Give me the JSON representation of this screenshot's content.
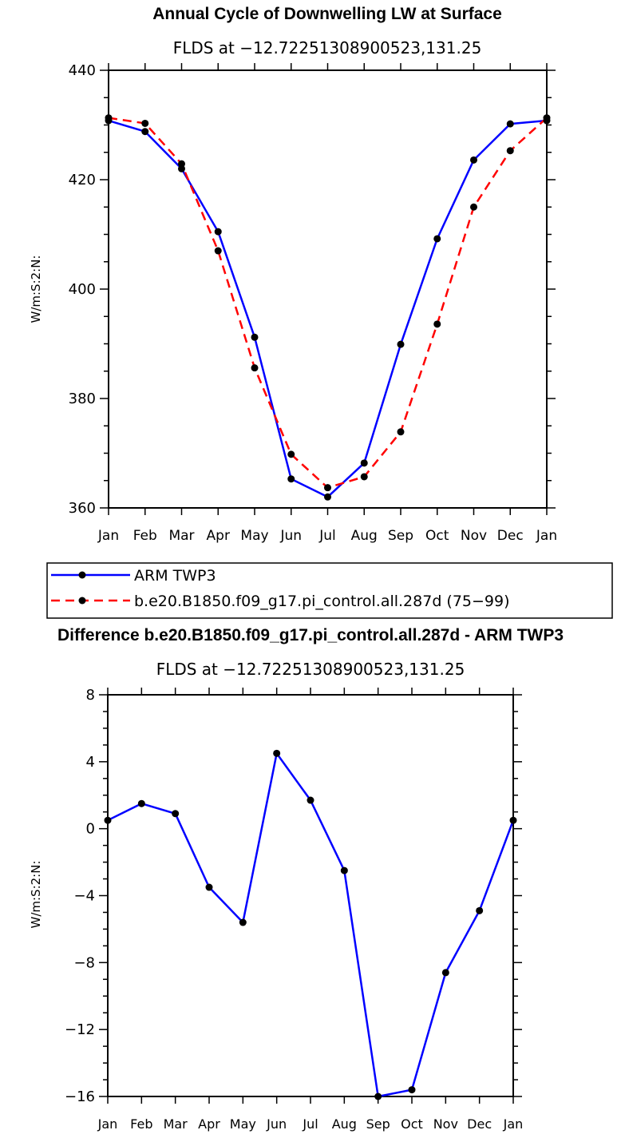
{
  "chart_data": [
    {
      "type": "line",
      "title": "Annual Cycle of Downwelling LW at Surface",
      "subtitle": "FLDS at −12.72251308900523,131.25",
      "ylabel": "W/m:S:2:N:",
      "xlabel": "",
      "categories": [
        "Jan",
        "Feb",
        "Mar",
        "Apr",
        "May",
        "Jun",
        "Jul",
        "Aug",
        "Sep",
        "Oct",
        "Nov",
        "Dec",
        "Jan"
      ],
      "ylim": [
        360,
        440
      ],
      "yticks": [
        "360",
        "380",
        "400",
        "420",
        "440"
      ],
      "series": [
        {
          "name": "ARM TWP3",
          "color": "#0000ff",
          "dash": "solid",
          "values": [
            430.8,
            428.8,
            422.0,
            410.5,
            391.2,
            365.3,
            362.0,
            368.2,
            389.9,
            409.2,
            423.6,
            430.2,
            430.8
          ]
        },
        {
          "name": "b.e20.B1850.f09_g17.pi_control.all.287d (75−99)",
          "color": "#ff0000",
          "dash": "dashed",
          "values": [
            431.3,
            430.3,
            422.9,
            407.0,
            385.6,
            369.8,
            363.7,
            365.7,
            373.9,
            393.6,
            415.0,
            425.3,
            431.3
          ]
        }
      ]
    },
    {
      "type": "line",
      "title": "Difference b.e20.B1850.f09_g17.pi_control.all.287d - ARM TWP3",
      "subtitle": "FLDS at −12.72251308900523,131.25",
      "ylabel": "W/m:S:2:N:",
      "xlabel": "",
      "categories": [
        "Jan",
        "Feb",
        "Mar",
        "Apr",
        "May",
        "Jun",
        "Jul",
        "Aug",
        "Sep",
        "Oct",
        "Nov",
        "Dec",
        "Jan"
      ],
      "ylim": [
        -16,
        8
      ],
      "yticks": [
        "−16",
        "−12",
        "−8",
        "−4",
        "0",
        "4",
        "8"
      ],
      "series": [
        {
          "name": "Difference",
          "color": "#0000ff",
          "dash": "solid",
          "values": [
            0.5,
            1.5,
            0.9,
            -3.5,
            -5.6,
            4.5,
            1.7,
            -2.5,
            -16.0,
            -15.6,
            -8.6,
            -4.9,
            0.5
          ]
        }
      ]
    }
  ]
}
